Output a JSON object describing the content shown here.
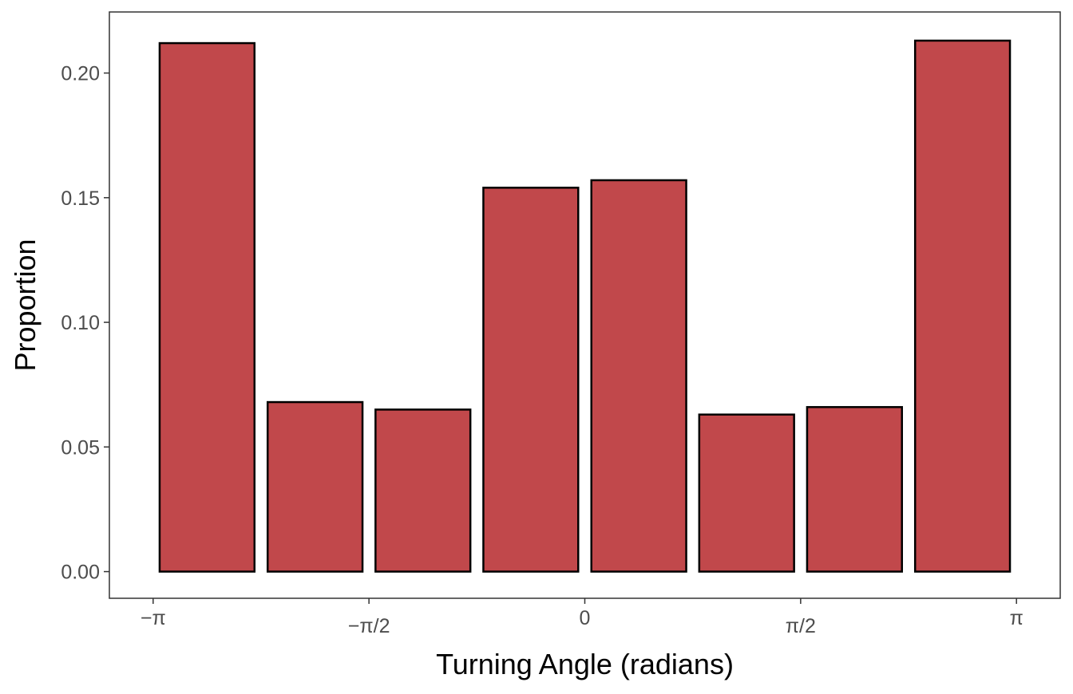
{
  "chart_data": {
    "type": "bar",
    "title": "",
    "xlabel": "Turning Angle (radians)",
    "ylabel": "Proportion",
    "x_ticks": [
      {
        "value": -3.14159,
        "label": "−π"
      },
      {
        "value": -1.5708,
        "label": "−π/2"
      },
      {
        "value": 0,
        "label": "0"
      },
      {
        "value": 1.5708,
        "label": "π/2"
      },
      {
        "value": 3.14159,
        "label": "π"
      }
    ],
    "y_ticks": [
      {
        "value": 0.0,
        "label": "0.00"
      },
      {
        "value": 0.05,
        "label": "0.05"
      },
      {
        "value": 0.1,
        "label": "0.10"
      },
      {
        "value": 0.15,
        "label": "0.15"
      },
      {
        "value": 0.2,
        "label": "0.20"
      }
    ],
    "xlim": [
      -3.46,
      3.46
    ],
    "ylim": [
      -0.0107,
      0.2245
    ],
    "bin_width": 0.7854,
    "bins": [
      {
        "center": -2.749,
        "value": 0.212
      },
      {
        "center": -1.963,
        "value": 0.068
      },
      {
        "center": -1.178,
        "value": 0.065
      },
      {
        "center": -0.393,
        "value": 0.154
      },
      {
        "center": 0.393,
        "value": 0.157
      },
      {
        "center": 1.178,
        "value": 0.063
      },
      {
        "center": 1.963,
        "value": 0.066
      },
      {
        "center": 2.749,
        "value": 0.213
      }
    ],
    "bar_fill": "#c1484b",
    "bar_outline": "#000000",
    "grid": false,
    "legend": "none"
  }
}
